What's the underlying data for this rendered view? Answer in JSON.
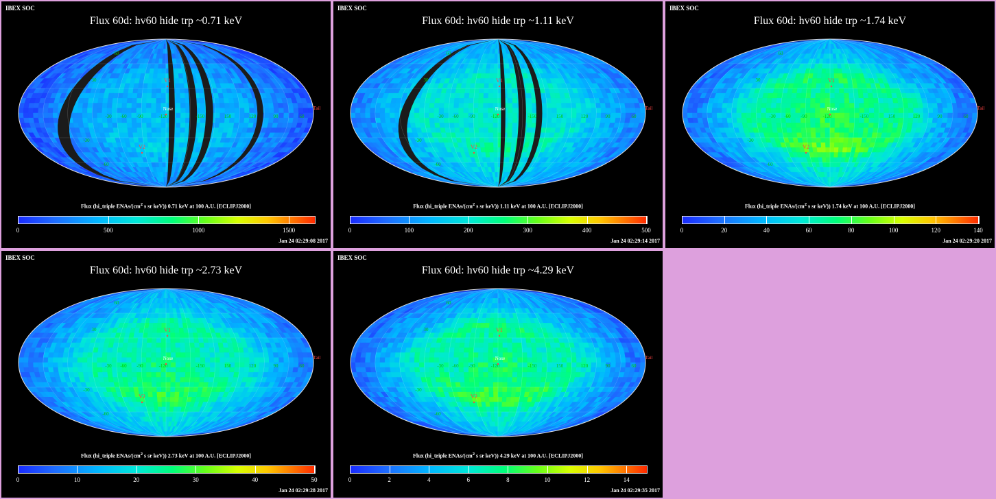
{
  "brand": "IBEX SOC",
  "cb_common": {
    "prefix": "Flux (hi_triple ENAs/(cm",
    "sup": "2",
    "mid": " s sr keV))  ",
    "suffix": " at 100 A.U. [ECLIPJ2000]"
  },
  "map_labels": {
    "voyager1": "V1",
    "voyager2": "V2",
    "nose": "Nose",
    "tail": "Tail",
    "lon_m30": "-30",
    "lon_m60": "-60",
    "lon_m90": "-90",
    "lon_m120": "-120",
    "lon_m150": "-150",
    "lon_30": "30",
    "lon_60": "60",
    "lon_90": "90",
    "lon_120": "120",
    "lon_150": "150",
    "lat_60": "60",
    "lat_30": "30",
    "lat_m30": "-30",
    "lat_m60": "-60"
  },
  "panels": [
    {
      "title": "Flux   60d: hv60 hide trp ~0.71 keV",
      "energy": "0.71 keV",
      "stamp": "Jan 24 02:29:08 2017",
      "ticks": [
        "0",
        "500",
        "1000",
        "1500"
      ],
      "tick_values": [
        0,
        500,
        1000,
        1500
      ],
      "max": 1640
    },
    {
      "title": "Flux   60d: hv60 hide trp ~1.11 keV",
      "energy": "1.11 keV",
      "stamp": "Jan 24 02:29:14 2017",
      "ticks": [
        "0",
        "100",
        "200",
        "300",
        "400",
        "500"
      ],
      "tick_values": [
        0,
        100,
        200,
        300,
        400,
        500
      ],
      "max": 500
    },
    {
      "title": "Flux   60d: hv60 hide trp ~1.74 keV",
      "energy": "1.74 keV",
      "stamp": "Jan 24 02:29:20 2017",
      "ticks": [
        "0",
        "20",
        "40",
        "60",
        "80",
        "100",
        "120",
        "140"
      ],
      "tick_values": [
        0,
        20,
        40,
        60,
        80,
        100,
        120,
        140
      ],
      "max": 140
    },
    {
      "title": "Flux   60d: hv60 hide trp ~2.73 keV",
      "energy": "2.73 keV",
      "stamp": "Jan 24 02:29:28 2017",
      "ticks": [
        "0",
        "10",
        "20",
        "30",
        "40",
        "50"
      ],
      "tick_values": [
        0,
        10,
        20,
        30,
        40,
        50
      ],
      "max": 50
    },
    {
      "title": "Flux   60d: hv60 hide trp ~4.29 keV",
      "energy": "4.29 keV",
      "stamp": "Jan 24 02:29:35 2017",
      "ticks": [
        "0",
        "2",
        "4",
        "6",
        "8",
        "10",
        "12",
        "14"
      ],
      "tick_values": [
        0,
        2,
        4,
        6,
        8,
        10,
        12,
        14
      ],
      "max": 15
    }
  ],
  "chart_data": [
    {
      "type": "heatmap",
      "title": "Flux   60d: hv60 hide trp ~0.71 keV",
      "colorbar_label": "Flux (hi_triple ENAs/(cm2 s sr keV))  0.71 keV at 100 A.U. [ECLIPJ2000]",
      "clim": [
        0,
        1640
      ],
      "dominant_level": [
        300,
        600
      ],
      "gaps": "black stripes of missing data"
    },
    {
      "type": "heatmap",
      "title": "Flux   60d: hv60 hide trp ~1.11 keV",
      "colorbar_label": "Flux (hi_triple ENAs/(cm2 s sr keV))  1.11 keV at 100 A.U. [ECLIPJ2000]",
      "clim": [
        0,
        500
      ],
      "dominant_level": [
        100,
        250
      ],
      "gaps": "black stripes of missing data"
    },
    {
      "type": "heatmap",
      "title": "Flux   60d: hv60 hide trp ~1.74 keV",
      "colorbar_label": "Flux (hi_triple ENAs/(cm2 s sr keV))  1.74 keV at 100 A.U. [ECLIPJ2000]",
      "clim": [
        0,
        140
      ],
      "dominant_level": [
        30,
        80
      ]
    },
    {
      "type": "heatmap",
      "title": "Flux   60d: hv60 hide trp ~2.73 keV",
      "colorbar_label": "Flux (hi_triple ENAs/(cm2 s sr keV))  2.73 keV at 100 A.U. [ECLIPJ2000]",
      "clim": [
        0,
        50
      ],
      "dominant_level": [
        10,
        30
      ]
    },
    {
      "type": "heatmap",
      "title": "Flux   60d: hv60 hide trp ~4.29 keV",
      "colorbar_label": "Flux (hi_triple ENAs/(cm2 s sr keV))  4.29 keV at 100 A.U. [ECLIPJ2000]",
      "clim": [
        0,
        15
      ],
      "dominant_level": [
        2,
        8
      ]
    }
  ]
}
